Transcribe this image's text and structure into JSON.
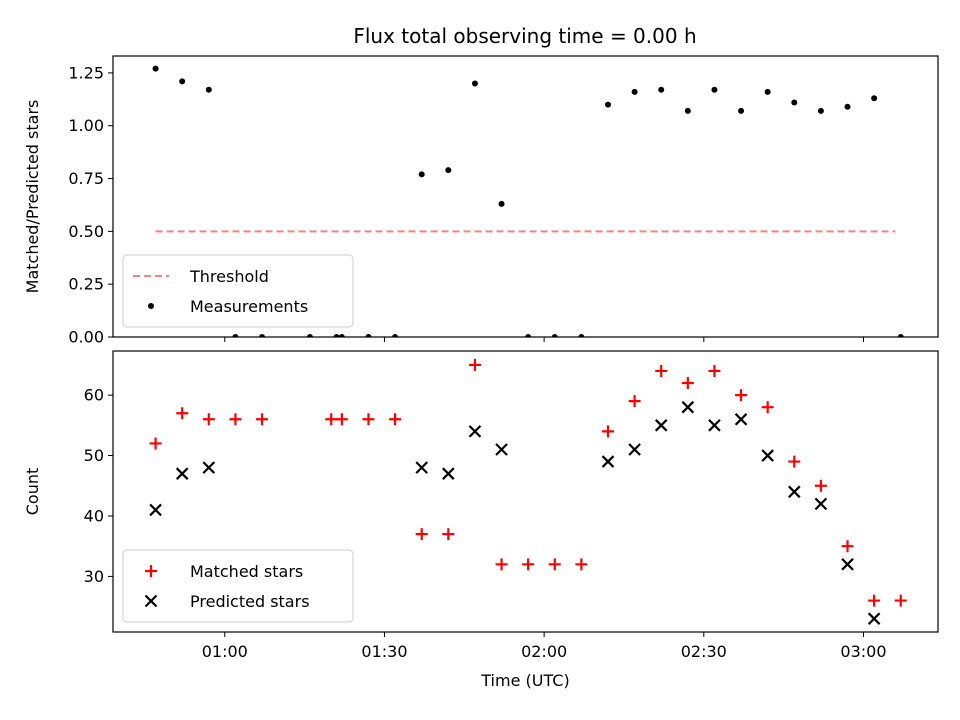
{
  "chart_data": [
    {
      "type": "scatter",
      "title": "Flux total observing time = 0.00 h",
      "xlabel": "",
      "ylabel": "Matched/Predicted stars",
      "xlim": [
        "00:39",
        "03:14"
      ],
      "ylim": [
        0,
        1.33
      ],
      "yticks": [
        "0.00",
        "0.25",
        "0.50",
        "0.75",
        "1.00",
        "1.25"
      ],
      "xticks": [
        "01:00",
        "01:30",
        "02:00",
        "02:30",
        "03:00"
      ],
      "show_xtick_labels": false,
      "legend_placement": "lower left",
      "threshold": {
        "name": "Threshold",
        "value": 0.5,
        "x_from": "00:47",
        "x_to": "03:06",
        "color": "#ff7f7f",
        "style": "dashed"
      },
      "series": [
        {
          "name": "Measurements",
          "marker": "dot",
          "color": "#000000",
          "x": [
            "00:47",
            "00:52",
            "00:57",
            "01:02",
            "01:07",
            "01:16",
            "01:21",
            "01:22",
            "01:27",
            "01:32",
            "01:37",
            "01:42",
            "01:47",
            "01:52",
            "01:57",
            "02:02",
            "02:07",
            "02:12",
            "02:17",
            "02:22",
            "02:27",
            "02:32",
            "02:37",
            "02:42",
            "02:47",
            "02:52",
            "02:57",
            "03:02",
            "03:07"
          ],
          "y": [
            1.27,
            1.21,
            1.17,
            0,
            0,
            0,
            0,
            0,
            0,
            0,
            0.77,
            0.79,
            1.2,
            0.63,
            0,
            0,
            0,
            1.1,
            1.16,
            1.17,
            1.07,
            1.17,
            1.07,
            1.16,
            1.11,
            1.07,
            1.09,
            1.13,
            0
          ]
        }
      ]
    },
    {
      "type": "scatter",
      "title": "",
      "xlabel": "Time (UTC)",
      "ylabel": "Count",
      "xlim": [
        "00:39",
        "03:14"
      ],
      "ylim": [
        20.8,
        67.3
      ],
      "yticks": [
        "30",
        "40",
        "50",
        "60"
      ],
      "xticks": [
        "01:00",
        "01:30",
        "02:00",
        "02:30",
        "03:00"
      ],
      "show_xtick_labels": true,
      "legend_placement": "lower left",
      "series": [
        {
          "name": "Matched stars",
          "marker": "plus",
          "color": "#ff0000",
          "x": [
            "00:47",
            "00:52",
            "00:57",
            "01:02",
            "01:07",
            "01:20",
            "01:22",
            "01:27",
            "01:32",
            "01:37",
            "01:42",
            "01:47",
            "01:52",
            "01:57",
            "02:02",
            "02:07",
            "02:12",
            "02:17",
            "02:22",
            "02:27",
            "02:32",
            "02:37",
            "02:42",
            "02:47",
            "02:52",
            "02:57",
            "03:02",
            "03:07"
          ],
          "y": [
            52,
            57,
            56,
            56,
            56,
            56,
            56,
            56,
            56,
            37,
            37,
            65,
            32,
            32,
            32,
            32,
            54,
            59,
            64,
            62,
            64,
            60,
            58,
            49,
            45,
            35,
            26,
            26
          ]
        },
        {
          "name": "Predicted stars",
          "marker": "x",
          "color": "#000000",
          "x": [
            "00:47",
            "00:52",
            "00:57",
            "01:37",
            "01:42",
            "01:47",
            "01:52",
            "02:12",
            "02:17",
            "02:22",
            "02:27",
            "02:32",
            "02:37",
            "02:42",
            "02:47",
            "02:52",
            "02:57",
            "03:02"
          ],
          "y": [
            41,
            47,
            48,
            48,
            47,
            54,
            51,
            49,
            51,
            55,
            58,
            55,
            56,
            50,
            44,
            42,
            32,
            23
          ]
        }
      ]
    }
  ]
}
